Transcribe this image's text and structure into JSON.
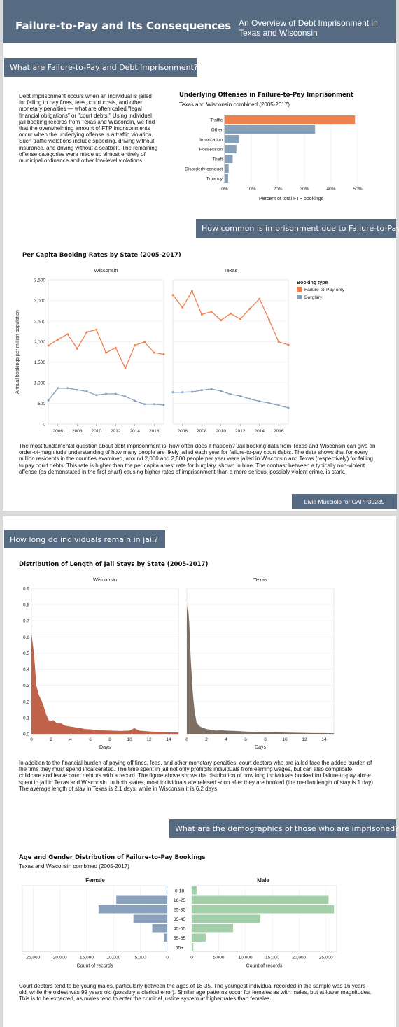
{
  "header": {
    "title": "Failure-to-Pay and Its Consequences",
    "subtitle": "An Overview of Debt Imprisonment in Texas and Wisconsin"
  },
  "sections": {
    "s1": "What are Failure-to-Pay and Debt Imprisonment?",
    "s2": "How common is imprisonment due to Failure-to-Pay?",
    "s3": "How long do individuals remain in jail?",
    "s4": "What are the demographics of those who are imprisoned?"
  },
  "paragraphs": {
    "p1": "Debt imprisonment occurs when an individual is jailed for failing to pay fines, fees, court costs, and other monetary penalties — what are often called \"legal financial obligations\" or \"court debts.\" Using individual jail booking records from Texas and Wisconsin, we find that the overwhelming amount of FTP imprisonments occur when the underlying offense is a traffic violation. Such traffic violations include speeding, driving without insurance, and driving without a seatbelt. The remaining offense categories were made up almost entirely of municipal ordinance and other low-level violations.",
    "p2": "The most fundamental question about debt imprisonment is, how often does it happen? Jail booking data from Texas and Wisconsin can give an order-of-magnitude understanding of how many people are likely jailed each year for failure-to-pay court debts. The data shows that for every million residents in the counties examined, around 2,000 and 2,500 people per year were jailed in Wisconsin and Texas (respectively) for failing to pay court debts. This rate is higher than the per capita arrest rate for burglary, shown in blue. The contrast between a typically non-violent offense (as demonstated in the first chart) causing higher rates of imprisonment than a more serious, possibly violent crime, is stark.",
    "p3": "In addition to the financial burden of paying off fines, fees, and other monetary penalties, court debtors who are jailed face the added burden of the time they must spend incarcerated. The time spent in jail not only prohibits individuals from earning wages, but can also complicate childcare and leave court debtors with a record. The figure above shows the distribution of how long individuals booked for failure-to-pay alone spent in jail in Texas and Wisconsin. In both states, most individuals are relased soon after they are booked (the median length of stay is 1 day). The average length of stay in Texas is 2.1 days, while in Wisconsin it is 6.2 days.",
    "p4": "Court debtors tend to be young males, particularly between the ages of 18-35. The youngest individual recorded in the sample was 16 years old, while the oldest was 99 years old (possibly a clerical error). Similar age patterns occur for females as with males, but at lower magnitudes. This is to be expected, as males tend to enter the criminal justice system at higher rates than females."
  },
  "credit": "Livia Mucciolo for CAPP30239",
  "colors": {
    "banner": "#566b82",
    "ftp": "#f0804e",
    "burglary": "#87a0ba",
    "wisconsin_area": "#c0614a",
    "texas_area": "#7d6e64",
    "female": "#8aa2bd",
    "male": "#a3d0a8"
  },
  "chart_data": [
    {
      "type": "bar",
      "title": "Underlying Offenses in Failure-to-Pay Imprisonment",
      "subtitle": "Texas and Wisconsin combined (2005-2017)",
      "orientation": "horizontal",
      "categories": [
        "Traffic",
        "Other",
        "Intoxication",
        "Possession",
        "Theft",
        "Disorderly conduct",
        "Truancy"
      ],
      "values": [
        0.49,
        0.34,
        0.055,
        0.044,
        0.03,
        0.015,
        0.013
      ],
      "highlight": "Traffic",
      "xlabel": "Percent of total FTP bookings",
      "xticks": [
        "0%",
        "10%",
        "20%",
        "30%",
        "40%",
        "50%"
      ],
      "xlim": [
        0,
        0.5
      ]
    },
    {
      "type": "line",
      "title": "Per Capita Booking Rates by State (2005-2017)",
      "ylabel": "Annual bookings per million population",
      "ylim": [
        0,
        3500
      ],
      "yticks": [
        "0",
        "500",
        "1,000",
        "1,500",
        "2,000",
        "2,500",
        "3,000",
        "3,500"
      ],
      "xticks": [
        "2006",
        "2008",
        "2010",
        "2012",
        "2014",
        "2016"
      ],
      "x": [
        2005,
        2006,
        2007,
        2008,
        2009,
        2010,
        2011,
        2012,
        2013,
        2014,
        2015,
        2016,
        2017
      ],
      "legend_title": "Booking type",
      "legend_items": [
        "Failure-to-Pay only",
        "Burglary"
      ],
      "panels": [
        {
          "name": "Wisconsin",
          "series": [
            {
              "name": "Failure-to-Pay only",
              "values": [
                1900,
                2050,
                2180,
                1830,
                2230,
                2290,
                1730,
                1850,
                1350,
                1910,
                1990,
                1730,
                1690
              ]
            },
            {
              "name": "Burglary",
              "values": [
                570,
                870,
                870,
                830,
                790,
                700,
                730,
                730,
                670,
                560,
                480,
                480,
                460
              ]
            }
          ]
        },
        {
          "name": "Texas",
          "series": [
            {
              "name": "Failure-to-Pay only",
              "values": [
                3130,
                2830,
                3230,
                2660,
                2730,
                2520,
                2680,
                2550,
                2800,
                3040,
                2530,
                1990,
                1920
              ]
            },
            {
              "name": "Burglary",
              "values": [
                770,
                770,
                780,
                820,
                850,
                800,
                720,
                680,
                610,
                550,
                510,
                450,
                390
              ]
            }
          ]
        }
      ]
    },
    {
      "type": "area",
      "title": "Distribution of Length of Jail Stays by State (2005-2017)",
      "xlabel": "Days",
      "xlim": [
        0,
        15
      ],
      "ylim": [
        0,
        0.9
      ],
      "xticks": [
        "0",
        "2",
        "4",
        "6",
        "8",
        "10",
        "12",
        "14"
      ],
      "yticks": [
        "0.0",
        "0.1",
        "0.2",
        "0.3",
        "0.4",
        "0.5",
        "0.6",
        "0.7",
        "0.8",
        "0.9"
      ],
      "panels": [
        {
          "name": "Wisconsin",
          "x": [
            0,
            0.25,
            0.5,
            0.75,
            1,
            1.25,
            1.5,
            1.75,
            2,
            2.25,
            2.5,
            3,
            3.5,
            4,
            4.5,
            5,
            5.5,
            6,
            6.5,
            7,
            8,
            9,
            10,
            10.5,
            11,
            12,
            13,
            14,
            15
          ],
          "y": [
            0.62,
            0.5,
            0.3,
            0.24,
            0.21,
            0.17,
            0.12,
            0.085,
            0.08,
            0.085,
            0.07,
            0.065,
            0.05,
            0.045,
            0.04,
            0.035,
            0.03,
            0.028,
            0.025,
            0.022,
            0.02,
            0.018,
            0.02,
            0.035,
            0.02,
            0.015,
            0.012,
            0.01,
            0.008
          ]
        },
        {
          "name": "Texas",
          "x": [
            0,
            0.1,
            0.25,
            0.4,
            0.6,
            0.8,
            1,
            1.25,
            1.5,
            1.75,
            2,
            2.5,
            3,
            3.5,
            4,
            5,
            6,
            7,
            8,
            9,
            10,
            11,
            12,
            13,
            14,
            15
          ],
          "y": [
            0.76,
            0.81,
            0.68,
            0.46,
            0.26,
            0.13,
            0.07,
            0.05,
            0.04,
            0.035,
            0.03,
            0.025,
            0.02,
            0.022,
            0.02,
            0.018,
            0.014,
            0.012,
            0.01,
            0.009,
            0.008,
            0.007,
            0.006,
            0.005,
            0.005,
            0.004
          ]
        }
      ]
    },
    {
      "type": "bar",
      "title": "Age and Gender Distribution of Failure-to-Pay Bookings",
      "subtitle": "Texas and Wisconsin combined (2005-2017)",
      "orientation": "horizontal",
      "categories": [
        "0-18",
        "18-25",
        "25-35",
        "35-45",
        "45-55",
        "55-65",
        "65+"
      ],
      "xlabel": "Count of records",
      "female_xticks": [
        "25,000",
        "20,000",
        "15,000",
        "10,000",
        "5,000",
        "0"
      ],
      "male_xticks": [
        "0",
        "5,000",
        "10,000",
        "15,000",
        "20,000",
        "25,000"
      ],
      "xlim": [
        0,
        27000
      ],
      "series": [
        {
          "name": "Female",
          "values": [
            150,
            9500,
            12800,
            6300,
            2800,
            600,
            50
          ]
        },
        {
          "name": "Male",
          "values": [
            900,
            25500,
            26500,
            12800,
            7700,
            2600,
            300
          ]
        }
      ]
    }
  ]
}
